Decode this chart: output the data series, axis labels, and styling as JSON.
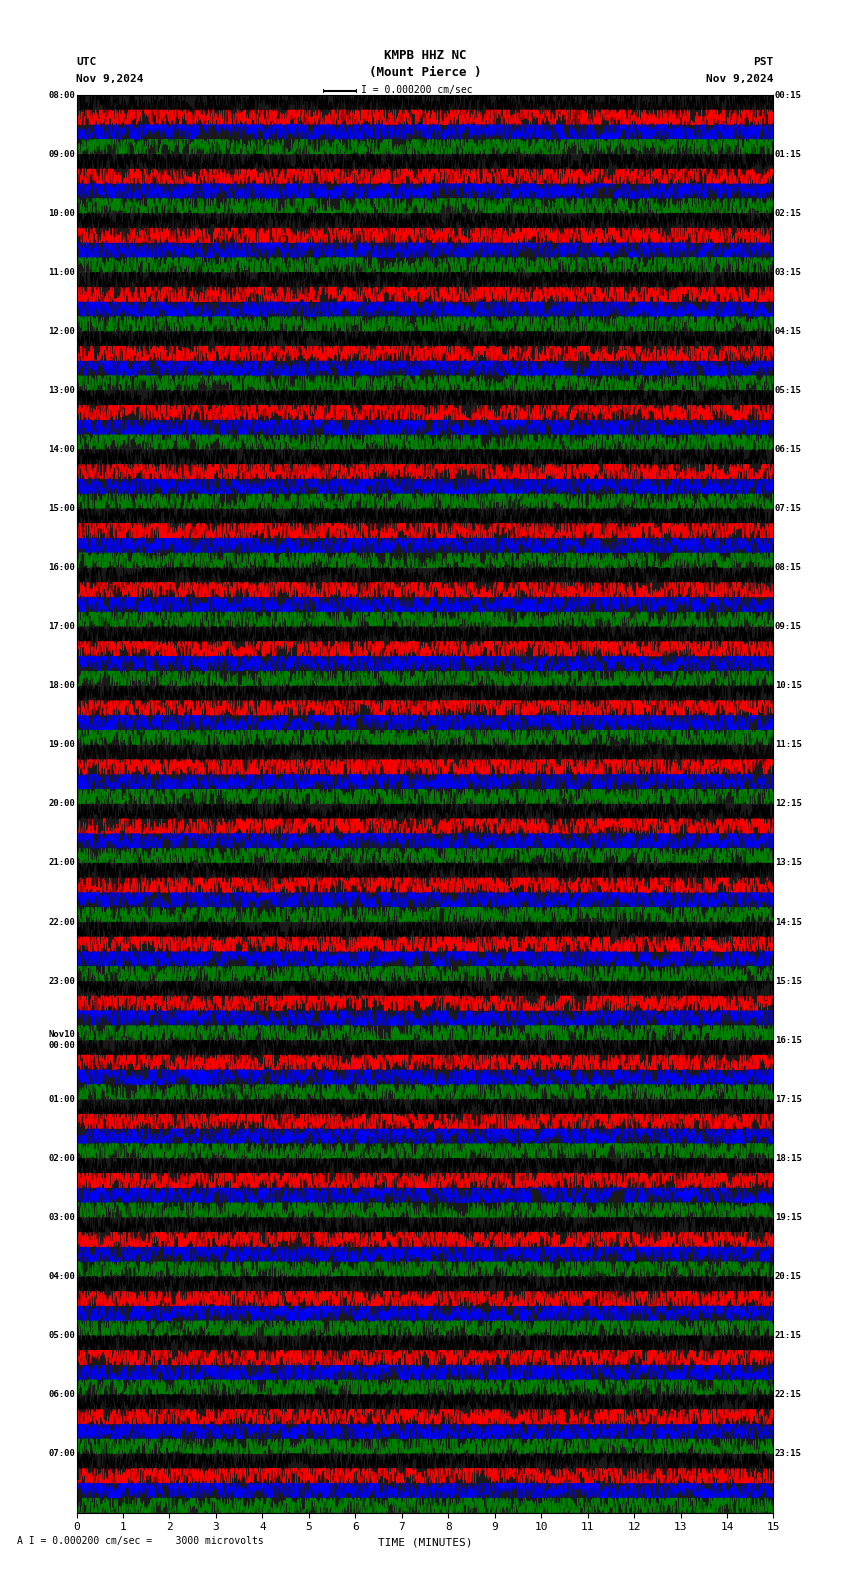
{
  "title_center_line1": "KMPB HHZ NC",
  "title_center_line2": "(Mount Pierce )",
  "title_left_line1": "UTC",
  "title_left_line2": "Nov 9,2024",
  "title_right_line1": "PST",
  "title_right_line2": "Nov 9,2024",
  "scale_label": "I = 0.000200 cm/sec",
  "bottom_label": "A I = 0.000200 cm/sec =    3000 microvolts",
  "xlabel": "TIME (MINUTES)",
  "left_times": [
    "08:00",
    "09:00",
    "10:00",
    "11:00",
    "12:00",
    "13:00",
    "14:00",
    "15:00",
    "16:00",
    "17:00",
    "18:00",
    "19:00",
    "20:00",
    "21:00",
    "22:00",
    "23:00",
    "Nov10\n00:00",
    "01:00",
    "02:00",
    "03:00",
    "04:00",
    "05:00",
    "06:00",
    "07:00"
  ],
  "right_times": [
    "00:15",
    "01:15",
    "02:15",
    "03:15",
    "04:15",
    "05:15",
    "06:15",
    "07:15",
    "08:15",
    "09:15",
    "10:15",
    "11:15",
    "12:15",
    "13:15",
    "14:15",
    "15:15",
    "16:15",
    "17:15",
    "18:15",
    "19:15",
    "20:15",
    "21:15",
    "22:15",
    "23:15"
  ],
  "trace_colors": [
    "black",
    "red",
    "blue",
    "green"
  ],
  "n_rows": 24,
  "traces_per_row": 4,
  "bg_color": "white",
  "plot_bg_color": "#1a1a1a",
  "fig_width": 8.5,
  "fig_height": 15.84,
  "dpi": 100,
  "xlim": [
    0,
    15
  ],
  "xticks": [
    0,
    1,
    2,
    3,
    4,
    5,
    6,
    7,
    8,
    9,
    10,
    11,
    12,
    13,
    14,
    15
  ],
  "noise_seed": 42
}
